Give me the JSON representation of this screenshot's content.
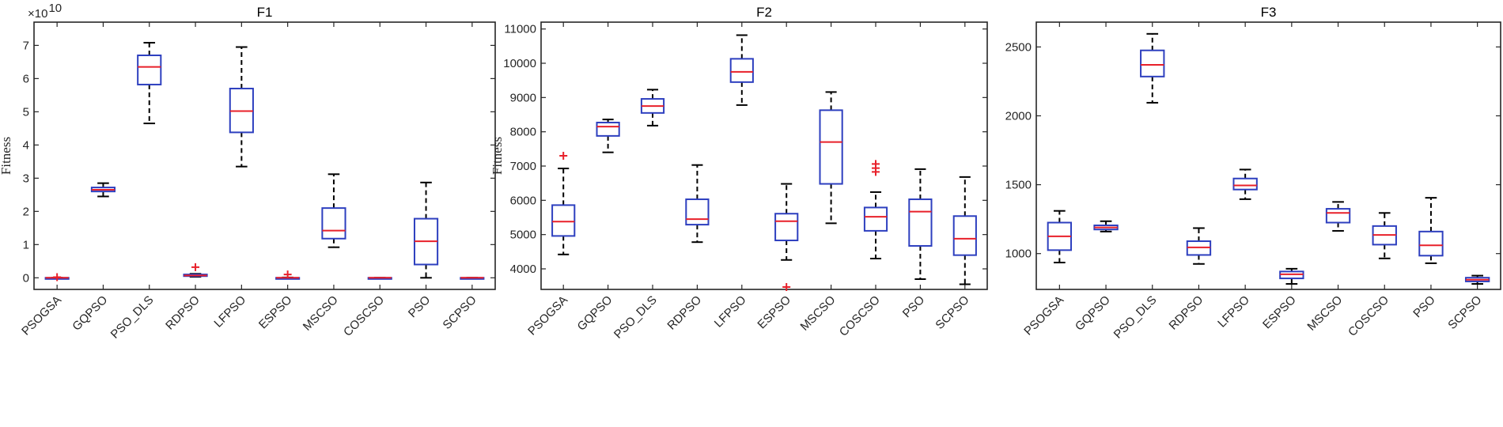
{
  "colors": {
    "box": "#2d3fbf",
    "median": "#e8202a",
    "whisker": "#000000",
    "outlier": "#e8202a",
    "frame": "#262626"
  },
  "chart_data": [
    {
      "type": "box",
      "title": "F1",
      "ylabel": "Fitness",
      "exponent_label": "×10",
      "exponent_power": "10",
      "ylim": [
        -0.35,
        7.7
      ],
      "yticks": [
        0,
        1,
        2,
        3,
        4,
        5,
        6,
        7
      ],
      "ytick_labels": [
        "0",
        "1",
        "2",
        "3",
        "4",
        "5",
        "6",
        "7"
      ],
      "categories": [
        "PSOGSA",
        "GQPSO",
        "PSO_DLS",
        "RDPSO",
        "LFPSO",
        "ESPSO",
        "MSCSO",
        "COSCSO",
        "PSO",
        "SCPSO"
      ],
      "boxes": [
        {
          "min": 0,
          "q1": 0,
          "median": 0,
          "q3": 0,
          "max": 0,
          "outliers": [
            0.02
          ]
        },
        {
          "min": 2.45,
          "q1": 2.6,
          "median": 2.65,
          "q3": 2.72,
          "max": 2.85,
          "outliers": []
        },
        {
          "min": 4.65,
          "q1": 5.82,
          "median": 6.35,
          "q3": 6.7,
          "max": 7.08,
          "outliers": []
        },
        {
          "min": 0.03,
          "q1": 0.05,
          "median": 0.07,
          "q3": 0.1,
          "max": 0.12,
          "outliers": [
            0.32
          ]
        },
        {
          "min": 3.35,
          "q1": 4.38,
          "median": 5.02,
          "q3": 5.7,
          "max": 6.95,
          "outliers": []
        },
        {
          "min": 0,
          "q1": 0,
          "median": 0,
          "q3": 0,
          "max": 0.01,
          "outliers": [
            0.1
          ]
        },
        {
          "min": 0.92,
          "q1": 1.18,
          "median": 1.42,
          "q3": 2.1,
          "max": 3.12,
          "outliers": []
        },
        {
          "min": 0,
          "q1": 0,
          "median": 0,
          "q3": 0,
          "max": 0,
          "outliers": []
        },
        {
          "min": 0,
          "q1": 0.4,
          "median": 1.1,
          "q3": 1.78,
          "max": 2.87,
          "outliers": []
        },
        {
          "min": 0,
          "q1": 0,
          "median": 0,
          "q3": 0,
          "max": 0,
          "outliers": []
        }
      ]
    },
    {
      "type": "box",
      "title": "F2",
      "ylabel": "Fitness",
      "exponent_label": "",
      "exponent_power": "",
      "ylim": [
        3400,
        11200
      ],
      "yticks": [
        4000,
        5000,
        6000,
        7000,
        8000,
        9000,
        10000,
        11000
      ],
      "ytick_labels": [
        "4000",
        "5000",
        "6000",
        "7000",
        "8000",
        "9000",
        "10000",
        "11000"
      ],
      "categories": [
        "PSOGSA",
        "GQPSO",
        "PSO_DLS",
        "RDPSO",
        "LFPSO",
        "ESPSO",
        "MSCSO",
        "COSCSO",
        "PSO",
        "SCPSO"
      ],
      "boxes": [
        {
          "min": 4420,
          "q1": 4960,
          "median": 5380,
          "q3": 5860,
          "max": 6930,
          "outliers": [
            7300
          ]
        },
        {
          "min": 7400,
          "q1": 7880,
          "median": 8150,
          "q3": 8270,
          "max": 8360,
          "outliers": []
        },
        {
          "min": 8180,
          "q1": 8550,
          "median": 8750,
          "q3": 8960,
          "max": 9230,
          "outliers": []
        },
        {
          "min": 4780,
          "q1": 5290,
          "median": 5450,
          "q3": 6030,
          "max": 7030,
          "outliers": []
        },
        {
          "min": 8780,
          "q1": 9450,
          "median": 9750,
          "q3": 10130,
          "max": 10820,
          "outliers": []
        },
        {
          "min": 4260,
          "q1": 4830,
          "median": 5390,
          "q3": 5610,
          "max": 6480,
          "outliers": [
            3470
          ]
        },
        {
          "min": 5330,
          "q1": 6480,
          "median": 7700,
          "q3": 8630,
          "max": 9160,
          "outliers": []
        },
        {
          "min": 4300,
          "q1": 5110,
          "median": 5520,
          "q3": 5790,
          "max": 6240,
          "outliers": [
            6830,
            6940,
            7060
          ]
        },
        {
          "min": 3700,
          "q1": 4670,
          "median": 5670,
          "q3": 6030,
          "max": 6910,
          "outliers": []
        },
        {
          "min": 3550,
          "q1": 4400,
          "median": 4880,
          "q3": 5540,
          "max": 6680,
          "outliers": []
        }
      ]
    },
    {
      "type": "box",
      "title": "F3",
      "ylabel": "",
      "exponent_label": "",
      "exponent_power": "",
      "ylim": [
        740,
        2680
      ],
      "yticks": [
        1000,
        1500,
        2000,
        2500
      ],
      "ytick_labels": [
        "1000",
        "1500",
        "2000",
        "2500"
      ],
      "categories": [
        "PSOGSA",
        "GQPSO",
        "PSO_DLS",
        "RDPSO",
        "LFPSO",
        "ESPSO",
        "MSCSO",
        "COSCSO",
        "PSO",
        "SCPSO"
      ],
      "boxes": [
        {
          "min": 935,
          "q1": 1025,
          "median": 1125,
          "q3": 1225,
          "max": 1310,
          "outliers": []
        },
        {
          "min": 1160,
          "q1": 1175,
          "median": 1190,
          "q3": 1205,
          "max": 1235,
          "outliers": []
        },
        {
          "min": 2095,
          "q1": 2285,
          "median": 2370,
          "q3": 2475,
          "max": 2595,
          "outliers": []
        },
        {
          "min": 925,
          "q1": 990,
          "median": 1045,
          "q3": 1090,
          "max": 1185,
          "outliers": []
        },
        {
          "min": 1395,
          "q1": 1465,
          "median": 1495,
          "q3": 1545,
          "max": 1610,
          "outliers": []
        },
        {
          "min": 780,
          "q1": 820,
          "median": 850,
          "q3": 870,
          "max": 890,
          "outliers": []
        },
        {
          "min": 1165,
          "q1": 1225,
          "median": 1295,
          "q3": 1325,
          "max": 1375,
          "outliers": []
        },
        {
          "min": 965,
          "q1": 1065,
          "median": 1135,
          "q3": 1200,
          "max": 1295,
          "outliers": []
        },
        {
          "min": 930,
          "q1": 985,
          "median": 1060,
          "q3": 1160,
          "max": 1405,
          "outliers": []
        },
        {
          "min": 780,
          "q1": 798,
          "median": 810,
          "q3": 825,
          "max": 840,
          "outliers": []
        }
      ]
    }
  ]
}
